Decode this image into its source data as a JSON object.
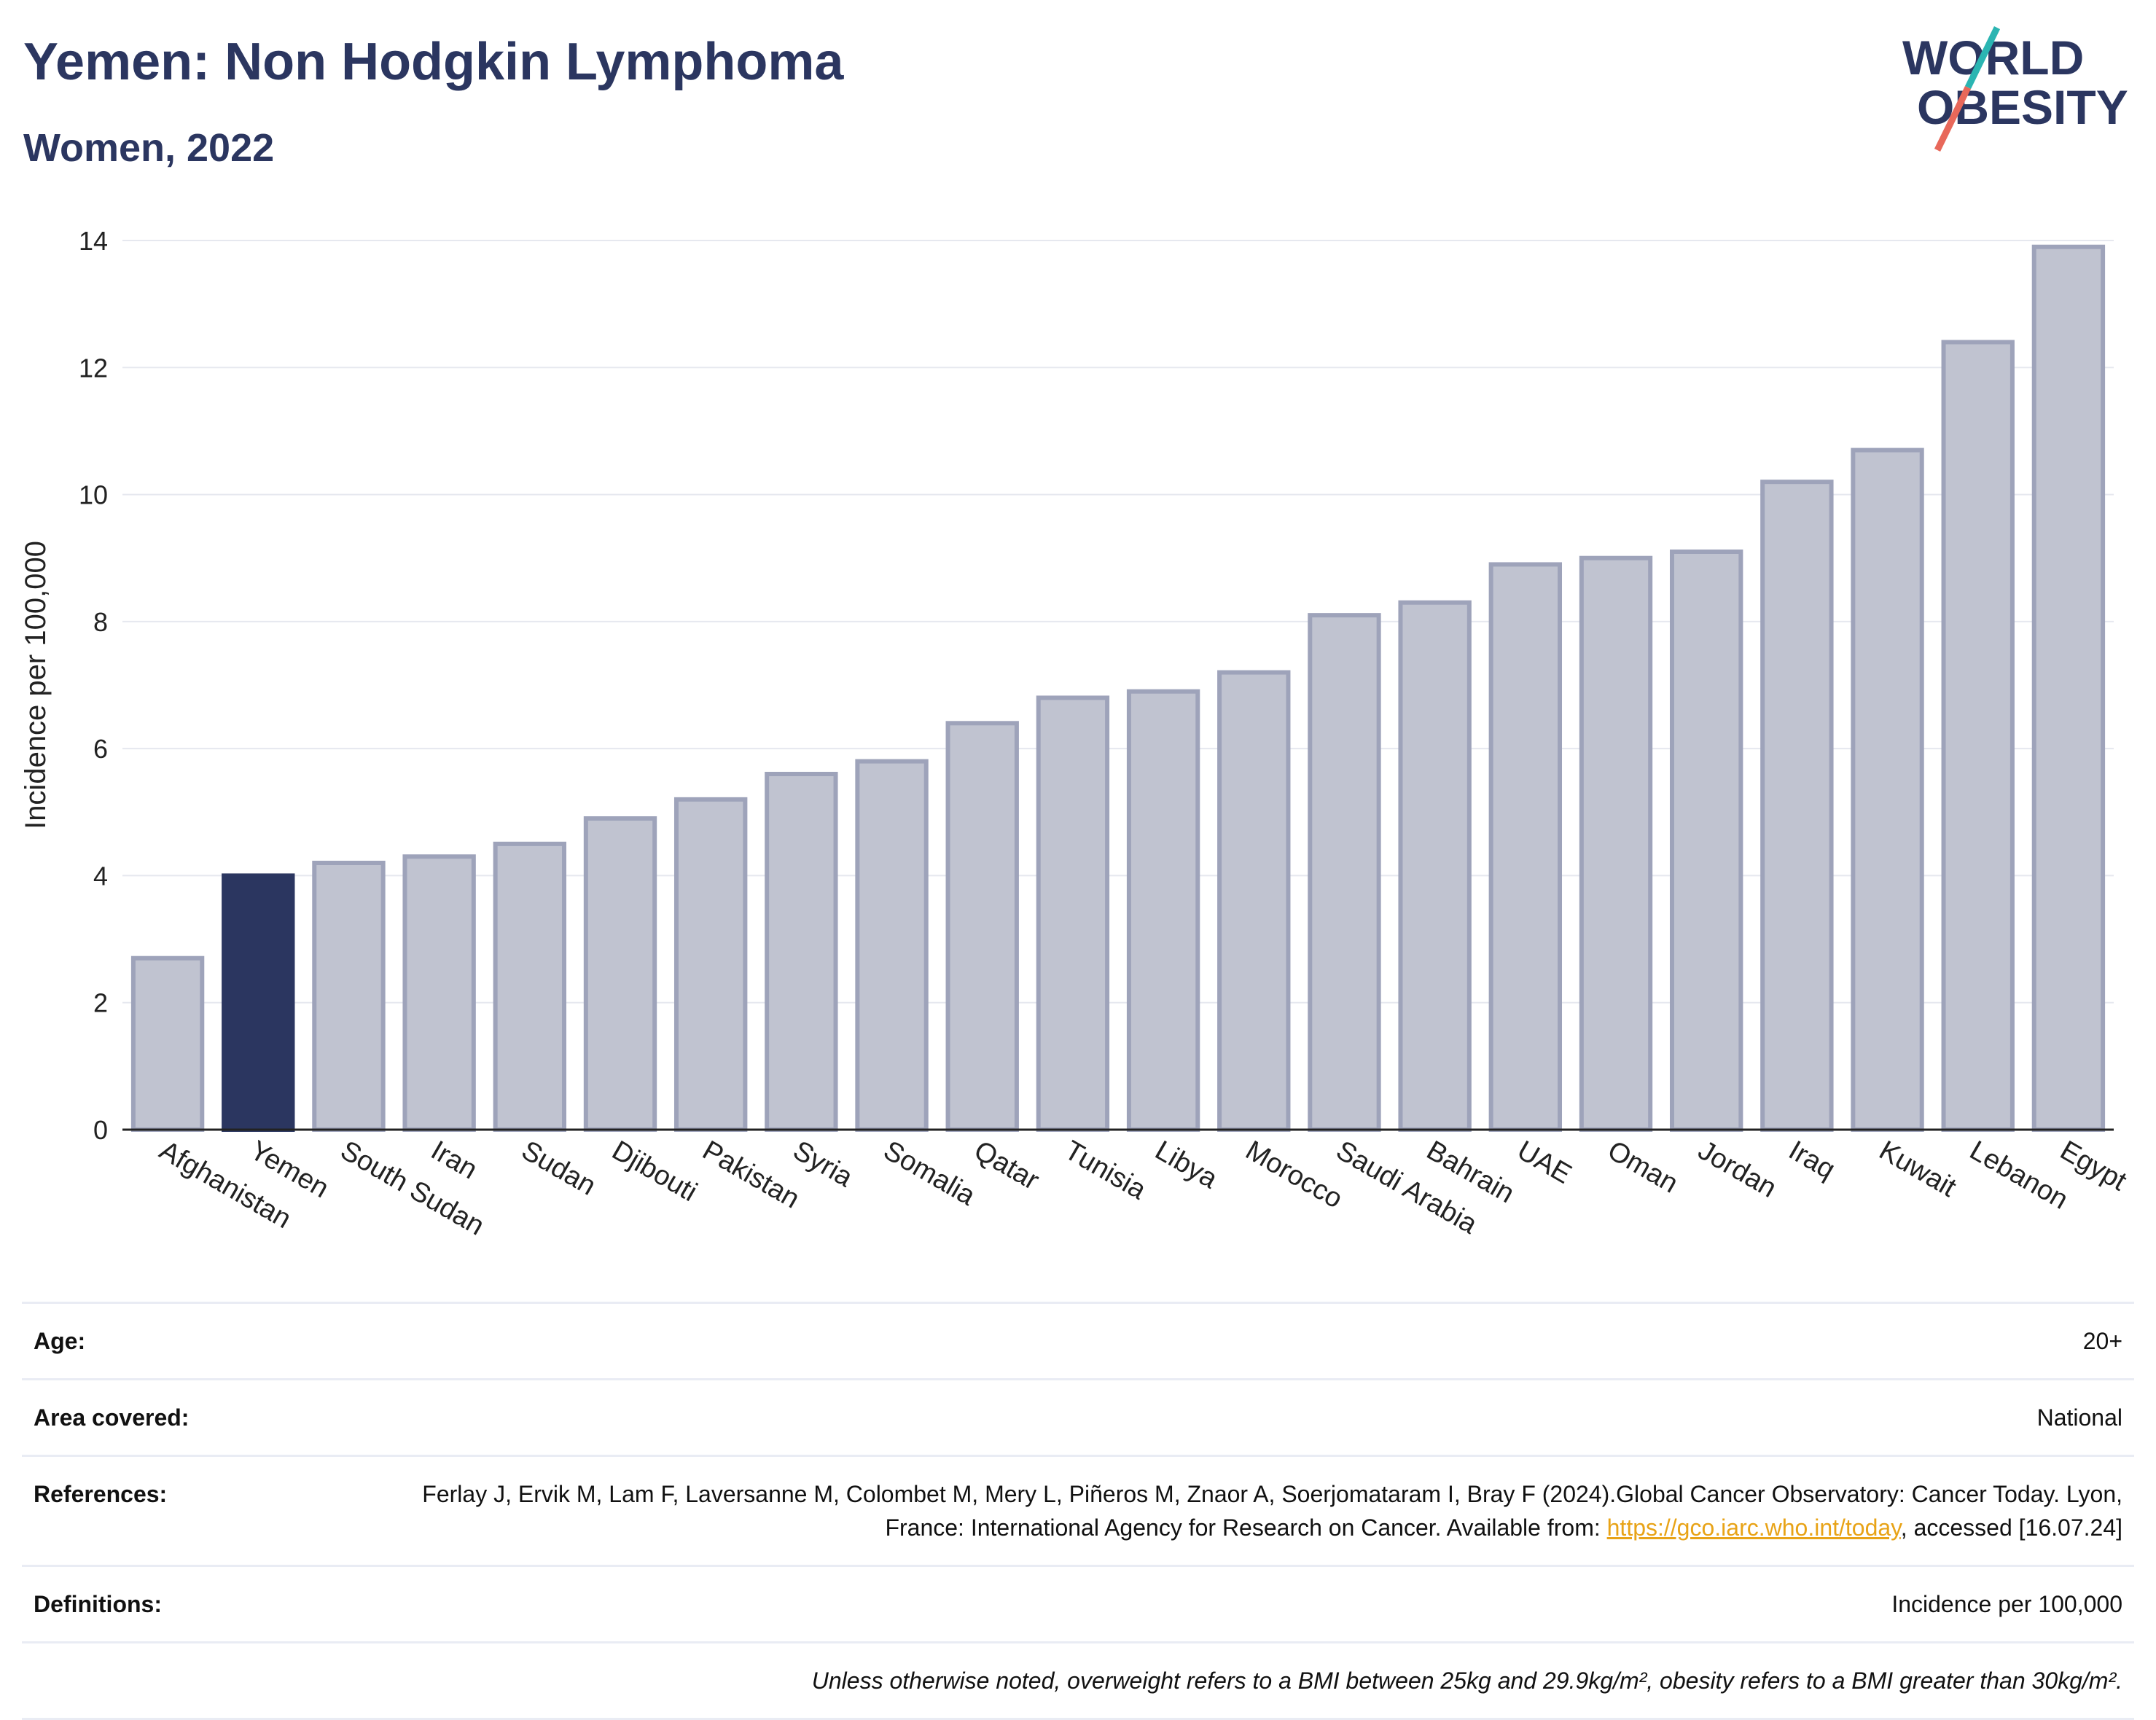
{
  "header": {
    "title": "Yemen: Non Hodgkin Lymphoma",
    "subtitle": "Women, 2022"
  },
  "logo": {
    "line1": "WORLD",
    "line2": "OBESITY",
    "colors": {
      "text": "#2b3660",
      "slash_teal": "#2bb5b2",
      "slash_coral": "#e8685a"
    }
  },
  "chart_data": {
    "type": "bar",
    "title": "Yemen: Non Hodgkin Lymphoma",
    "subtitle": "Women, 2022",
    "xlabel": "",
    "ylabel": "Incidence per 100,000",
    "ylim": [
      0,
      14
    ],
    "yticks": [
      0,
      2,
      4,
      6,
      8,
      10,
      12,
      14
    ],
    "grid": true,
    "legend": "none",
    "highlight": "Yemen",
    "colors": {
      "highlight": "#2b3660",
      "bar": "#c0c3d0",
      "bar_edge": "#9ea3ba"
    },
    "categories": [
      "Afghanistan",
      "Yemen",
      "South Sudan",
      "Iran",
      "Sudan",
      "Djibouti",
      "Pakistan",
      "Syria",
      "Somalia",
      "Qatar",
      "Tunisia",
      "Libya",
      "Morocco",
      "Saudi Arabia",
      "Bahrain",
      "UAE",
      "Oman",
      "Jordan",
      "Iraq",
      "Kuwait",
      "Lebanon",
      "Egypt"
    ],
    "values": [
      2.7,
      4.0,
      4.2,
      4.3,
      4.5,
      4.9,
      5.2,
      5.6,
      5.8,
      6.4,
      6.8,
      6.9,
      7.2,
      8.1,
      8.3,
      8.9,
      9.0,
      9.1,
      10.2,
      10.7,
      12.4,
      13.9
    ]
  },
  "meta": {
    "age_label": "Age:",
    "age_value": "20+",
    "area_label": "Area covered:",
    "area_value": "National",
    "references_label": "References:",
    "references_text": "Ferlay J, Ervik M, Lam F, Laversanne M, Colombet M, Mery L, Piñeros M, Znaor A, Soerjomataram I, Bray F (2024).Global Cancer Observatory: Cancer Today. Lyon, France: International Agency for Research on Cancer. Available from: ",
    "references_link": "https://gco.iarc.who.int/today",
    "references_tail": ", accessed [16.07.24]",
    "definitions_label": "Definitions:",
    "definitions_value": "Incidence per 100,000",
    "note": "Unless otherwise noted, overweight refers to a BMI between 25kg and 29.9kg/m², obesity refers to a BMI greater than 30kg/m²."
  }
}
